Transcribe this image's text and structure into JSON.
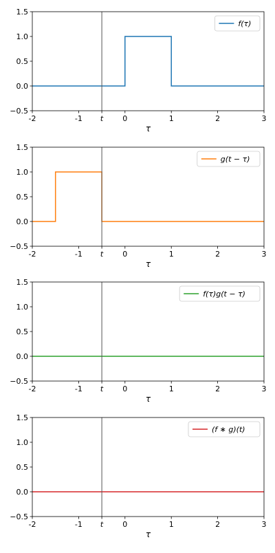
{
  "chart_data": [
    {
      "type": "line",
      "xlabel": "τ",
      "xlim": [
        -2,
        3
      ],
      "ylim": [
        -0.5,
        1.5
      ],
      "xticks": [
        {
          "value": -2,
          "label": "-2"
        },
        {
          "value": -1,
          "label": "-1"
        },
        {
          "value": -0.5,
          "label": "t"
        },
        {
          "value": 0,
          "label": "0"
        },
        {
          "value": 1,
          "label": "1"
        },
        {
          "value": 2,
          "label": "2"
        },
        {
          "value": 3,
          "label": "3"
        }
      ],
      "yticks": [
        {
          "value": -0.5,
          "label": "−0.5"
        },
        {
          "value": 0,
          "label": "0.0"
        },
        {
          "value": 0.5,
          "label": "0.5"
        },
        {
          "value": 1,
          "label": "1.0"
        },
        {
          "value": 1.5,
          "label": "1.5"
        }
      ],
      "vline_x": -0.5,
      "legend_position": "top-right",
      "series": [
        {
          "name": "f(τ)",
          "color": "#1f77b4",
          "x": [
            -2,
            0,
            0,
            1,
            1,
            3
          ],
          "y": [
            0,
            0,
            1,
            1,
            0,
            0
          ]
        }
      ]
    },
    {
      "type": "line",
      "xlabel": "τ",
      "xlim": [
        -2,
        3
      ],
      "ylim": [
        -0.5,
        1.5
      ],
      "xticks": [
        {
          "value": -2,
          "label": "-2"
        },
        {
          "value": -1,
          "label": "-1"
        },
        {
          "value": -0.5,
          "label": "t"
        },
        {
          "value": 0,
          "label": "0"
        },
        {
          "value": 1,
          "label": "1"
        },
        {
          "value": 2,
          "label": "2"
        },
        {
          "value": 3,
          "label": "3"
        }
      ],
      "yticks": [
        {
          "value": -0.5,
          "label": "−0.5"
        },
        {
          "value": 0,
          "label": "0.0"
        },
        {
          "value": 0.5,
          "label": "0.5"
        },
        {
          "value": 1,
          "label": "1.0"
        },
        {
          "value": 1.5,
          "label": "1.5"
        }
      ],
      "vline_x": -0.5,
      "legend_position": "top-right",
      "series": [
        {
          "name": "g(t − τ)",
          "color": "#ff7f0e",
          "x": [
            -2,
            -1.5,
            -1.5,
            -0.5,
            -0.5,
            3
          ],
          "y": [
            0,
            0,
            1,
            1,
            0,
            0
          ]
        }
      ]
    },
    {
      "type": "line",
      "xlabel": "τ",
      "xlim": [
        -2,
        3
      ],
      "ylim": [
        -0.5,
        1.5
      ],
      "xticks": [
        {
          "value": -2,
          "label": "-2"
        },
        {
          "value": -1,
          "label": "-1"
        },
        {
          "value": -0.5,
          "label": "t"
        },
        {
          "value": 0,
          "label": "0"
        },
        {
          "value": 1,
          "label": "1"
        },
        {
          "value": 2,
          "label": "2"
        },
        {
          "value": 3,
          "label": "3"
        }
      ],
      "yticks": [
        {
          "value": -0.5,
          "label": "−0.5"
        },
        {
          "value": 0,
          "label": "0.0"
        },
        {
          "value": 0.5,
          "label": "0.5"
        },
        {
          "value": 1,
          "label": "1.0"
        },
        {
          "value": 1.5,
          "label": "1.5"
        }
      ],
      "vline_x": -0.5,
      "legend_position": "top-right",
      "series": [
        {
          "name": "f(τ)g(t − τ)",
          "color": "#2ca02c",
          "x": [
            -2,
            3
          ],
          "y": [
            0,
            0
          ]
        }
      ]
    },
    {
      "type": "line",
      "xlabel": "τ",
      "xlim": [
        -2,
        3
      ],
      "ylim": [
        -0.5,
        1.5
      ],
      "xticks": [
        {
          "value": -2,
          "label": "-2"
        },
        {
          "value": -1,
          "label": "-1"
        },
        {
          "value": -0.5,
          "label": "t"
        },
        {
          "value": 0,
          "label": "0"
        },
        {
          "value": 1,
          "label": "1"
        },
        {
          "value": 2,
          "label": "2"
        },
        {
          "value": 3,
          "label": "3"
        }
      ],
      "yticks": [
        {
          "value": -0.5,
          "label": "−0.5"
        },
        {
          "value": 0,
          "label": "0.0"
        },
        {
          "value": 0.5,
          "label": "0.5"
        },
        {
          "value": 1,
          "label": "1.0"
        },
        {
          "value": 1.5,
          "label": "1.5"
        }
      ],
      "vline_x": -0.5,
      "legend_position": "top-right",
      "series": [
        {
          "name": "(f ∗ g)(t)",
          "color": "#d62728",
          "x": [
            -2,
            3
          ],
          "y": [
            0,
            0
          ]
        }
      ]
    }
  ]
}
